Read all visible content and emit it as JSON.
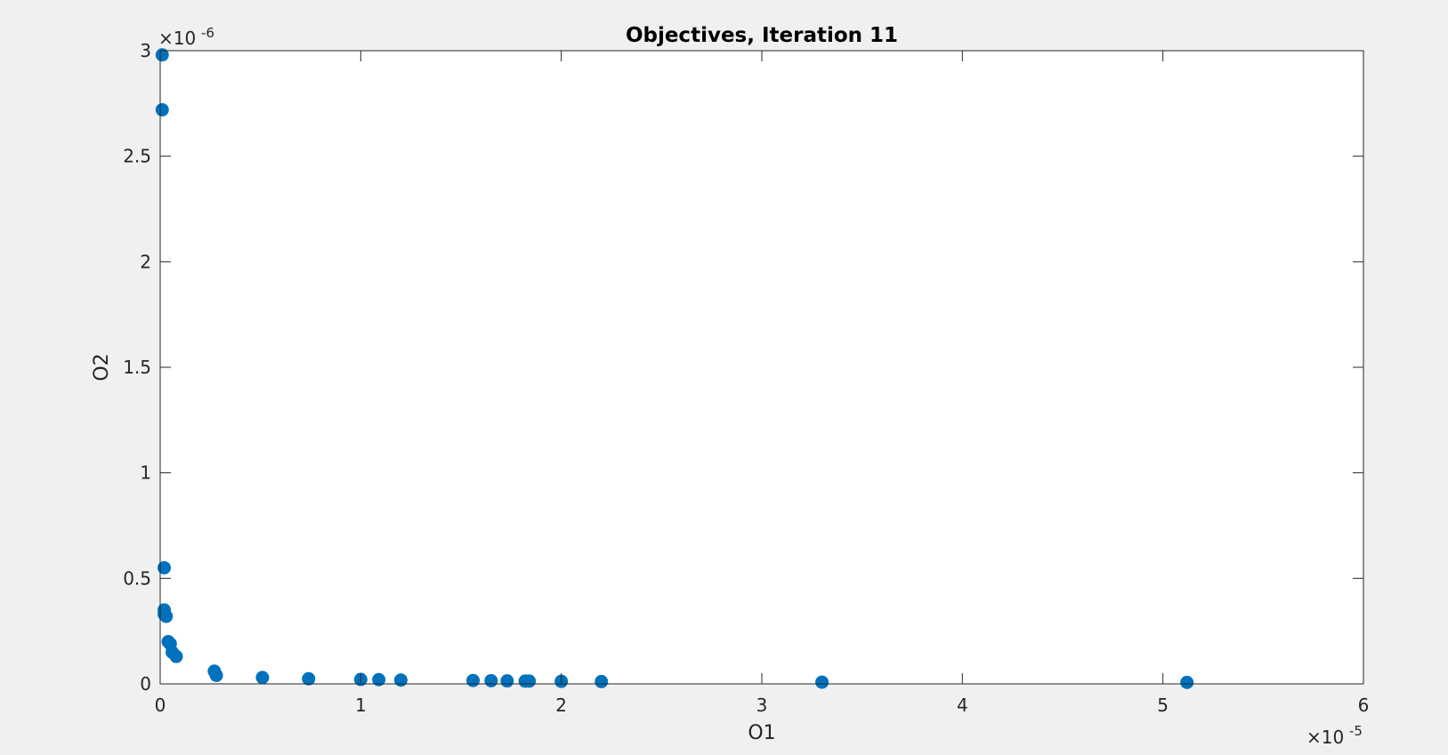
{
  "chart_data": {
    "type": "scatter",
    "title": "Objectives, Iteration 11",
    "xlabel": "O1",
    "ylabel": "O2",
    "x_multiplier_label": "×10",
    "x_multiplier_exp": "-5",
    "y_multiplier_label": "×10",
    "y_multiplier_exp": "-6",
    "x_scale": 1e-05,
    "y_scale": 1e-06,
    "xlim": [
      0,
      6
    ],
    "ylim": [
      0,
      3
    ],
    "xticks": [
      0,
      1,
      2,
      3,
      4,
      5,
      6
    ],
    "xtick_labels": [
      "0",
      "1",
      "2",
      "3",
      "4",
      "5",
      "6"
    ],
    "yticks": [
      0,
      0.5,
      1,
      1.5,
      2,
      2.5,
      3
    ],
    "ytick_labels": [
      "0",
      "0.5",
      "1",
      "1.5",
      "2",
      "2.5",
      "3"
    ],
    "grid": false,
    "marker_color": "#0072bd",
    "points": [
      {
        "x": 0.01,
        "y": 2.98
      },
      {
        "x": 0.01,
        "y": 2.72
      },
      {
        "x": 0.02,
        "y": 0.55
      },
      {
        "x": 0.02,
        "y": 0.35
      },
      {
        "x": 0.02,
        "y": 0.33
      },
      {
        "x": 0.03,
        "y": 0.32
      },
      {
        "x": 0.04,
        "y": 0.2
      },
      {
        "x": 0.05,
        "y": 0.19
      },
      {
        "x": 0.06,
        "y": 0.15
      },
      {
        "x": 0.08,
        "y": 0.13
      },
      {
        "x": 0.27,
        "y": 0.06
      },
      {
        "x": 0.28,
        "y": 0.04
      },
      {
        "x": 0.51,
        "y": 0.03
      },
      {
        "x": 0.74,
        "y": 0.024
      },
      {
        "x": 1.0,
        "y": 0.021
      },
      {
        "x": 1.09,
        "y": 0.02
      },
      {
        "x": 1.2,
        "y": 0.018
      },
      {
        "x": 1.56,
        "y": 0.016
      },
      {
        "x": 1.65,
        "y": 0.015
      },
      {
        "x": 1.73,
        "y": 0.014
      },
      {
        "x": 1.82,
        "y": 0.013
      },
      {
        "x": 1.84,
        "y": 0.013
      },
      {
        "x": 2.0,
        "y": 0.012
      },
      {
        "x": 2.2,
        "y": 0.011
      },
      {
        "x": 3.3,
        "y": 0.008
      },
      {
        "x": 5.12,
        "y": 0.007
      }
    ]
  }
}
